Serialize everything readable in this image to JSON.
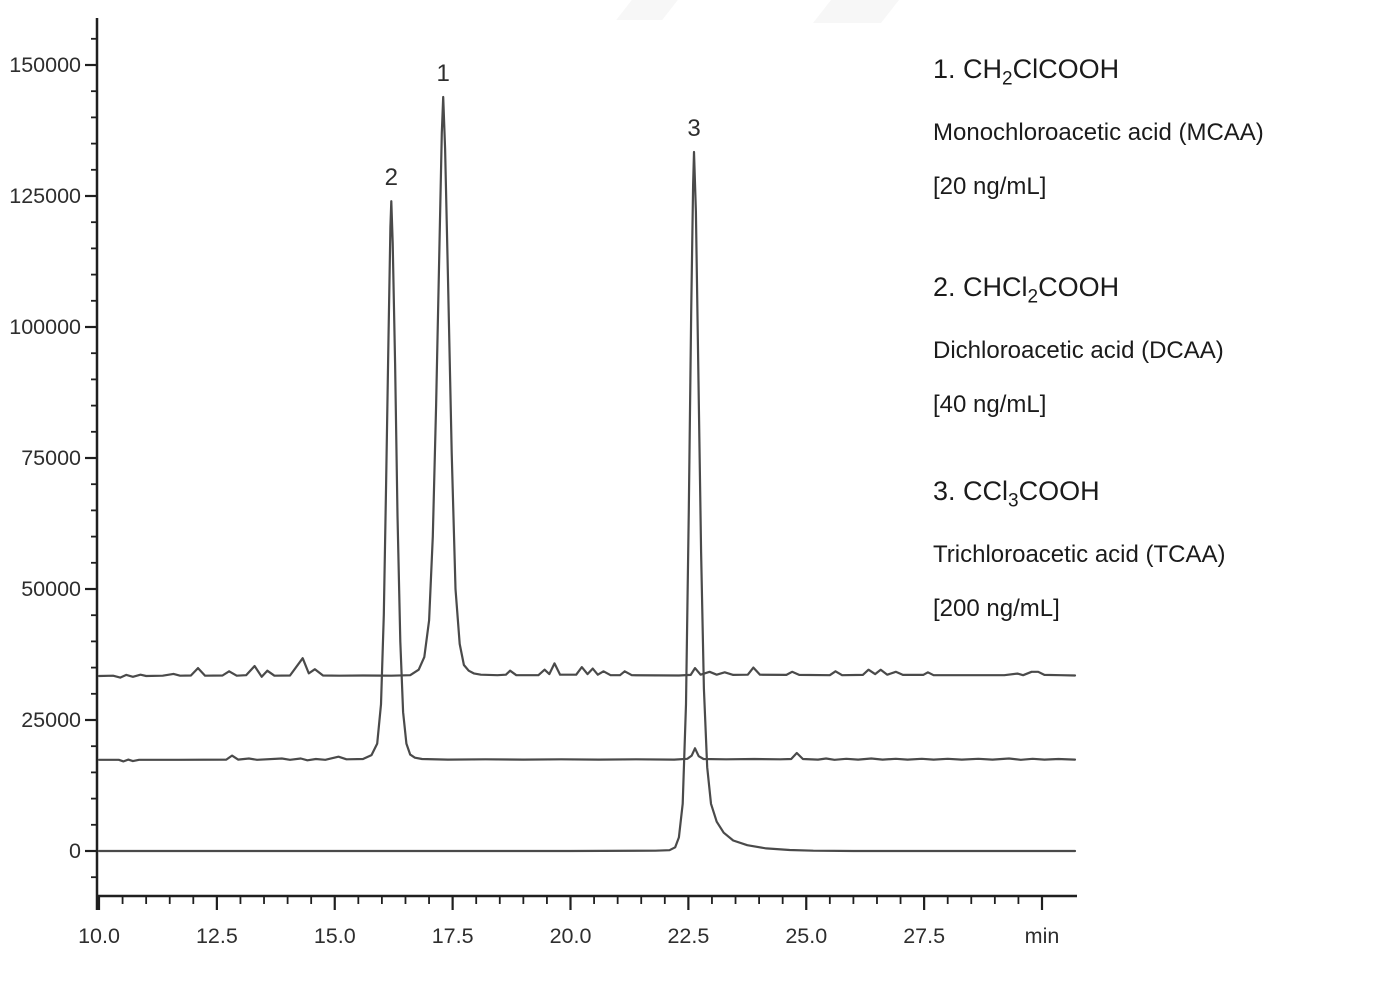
{
  "figure": {
    "background_color": "#ffffff",
    "trace_color": "#4a4a4a",
    "axis_color": "#1f1f1f",
    "tick_label_color": "#2e2e2e",
    "watermark_color": "#f7f7f7"
  },
  "legend": {
    "items": [
      {
        "formula_pre": "1. CH",
        "formula_sub": "2",
        "formula_post": "ClCOOH",
        "name": "Monochloroacetic acid (MCAA)",
        "concentration": "[20 ng/mL]"
      },
      {
        "formula_pre": "2. CHCl",
        "formula_sub": "2",
        "formula_post": "COOH",
        "name": "Dichloroacetic acid (DCAA)",
        "concentration": "[40 ng/mL]"
      },
      {
        "formula_pre": "3. CCl",
        "formula_sub": "3",
        "formula_post": "COOH",
        "name": "Trichloroacetic acid (TCAA)",
        "concentration": "[200 ng/mL]"
      }
    ]
  },
  "chart_data": {
    "type": "line",
    "subtype": "chromatogram",
    "title": "",
    "xlabel": "min",
    "ylabel": "",
    "grid": false,
    "legend_position": "right",
    "xlim": [
      10.0,
      30.7
    ],
    "ylim": [
      0,
      150000
    ],
    "x_minor_step": 0.5,
    "y_minor_step": 5000,
    "x_ticks": {
      "values": [
        10.0,
        12.5,
        15.0,
        17.5,
        20.0,
        22.5,
        25.0,
        27.5,
        30.0
      ],
      "labels": [
        "10.0",
        "12.5",
        "15.0",
        "17.5",
        "20.0",
        "22.5",
        "25.0",
        "27.5",
        "min"
      ]
    },
    "y_ticks": {
      "values": [
        0,
        25000,
        50000,
        75000,
        100000,
        125000,
        150000
      ],
      "labels": [
        "0",
        "25000",
        "50000",
        "75000",
        "100000",
        "125000",
        "150000"
      ]
    },
    "peaks": [
      {
        "label": "1",
        "compound": "MCAA",
        "time_min": 17.3,
        "apex_value": 143900
      },
      {
        "label": "2",
        "compound": "DCAA",
        "time_min": 16.2,
        "apex_value": 124000
      },
      {
        "label": "3",
        "compound": "TCAA",
        "time_min": 22.62,
        "apex_value": 133400
      }
    ],
    "series": [
      {
        "id": "trace-mcaa",
        "name": "MCAA trace (offset baseline 33400)",
        "baseline": 33400,
        "points": [
          [
            10.0,
            33400
          ],
          [
            10.3,
            33450
          ],
          [
            10.45,
            33100
          ],
          [
            10.58,
            33600
          ],
          [
            10.72,
            33250
          ],
          [
            10.88,
            33650
          ],
          [
            11.0,
            33400
          ],
          [
            11.35,
            33450
          ],
          [
            11.58,
            33800
          ],
          [
            11.72,
            33450
          ],
          [
            11.95,
            33500
          ],
          [
            12.1,
            34900
          ],
          [
            12.25,
            33450
          ],
          [
            12.62,
            33500
          ],
          [
            12.76,
            34300
          ],
          [
            12.92,
            33450
          ],
          [
            13.12,
            33550
          ],
          [
            13.3,
            35300
          ],
          [
            13.45,
            33250
          ],
          [
            13.57,
            34400
          ],
          [
            13.72,
            33450
          ],
          [
            14.05,
            33500
          ],
          [
            14.32,
            36800
          ],
          [
            14.45,
            33900
          ],
          [
            14.58,
            34700
          ],
          [
            14.75,
            33500
          ],
          [
            15.1,
            33450
          ],
          [
            15.6,
            33500
          ],
          [
            16.2,
            33450
          ],
          [
            16.6,
            33550
          ],
          [
            16.78,
            34600
          ],
          [
            16.9,
            37000
          ],
          [
            17.0,
            44000
          ],
          [
            17.08,
            60000
          ],
          [
            17.15,
            85000
          ],
          [
            17.22,
            115000
          ],
          [
            17.27,
            137000
          ],
          [
            17.3,
            143900
          ],
          [
            17.34,
            134000
          ],
          [
            17.4,
            110000
          ],
          [
            17.48,
            76000
          ],
          [
            17.56,
            50000
          ],
          [
            17.65,
            39500
          ],
          [
            17.74,
            35500
          ],
          [
            17.84,
            34400
          ],
          [
            17.95,
            33900
          ],
          [
            18.1,
            33650
          ],
          [
            18.45,
            33550
          ],
          [
            18.63,
            33650
          ],
          [
            18.72,
            34400
          ],
          [
            18.85,
            33550
          ],
          [
            19.32,
            33550
          ],
          [
            19.45,
            34600
          ],
          [
            19.55,
            33750
          ],
          [
            19.66,
            35800
          ],
          [
            19.78,
            33650
          ],
          [
            20.12,
            33650
          ],
          [
            20.24,
            35100
          ],
          [
            20.36,
            33750
          ],
          [
            20.47,
            34800
          ],
          [
            20.58,
            33650
          ],
          [
            20.7,
            34300
          ],
          [
            20.85,
            33550
          ],
          [
            21.05,
            33550
          ],
          [
            21.15,
            34300
          ],
          [
            21.3,
            33550
          ],
          [
            22.3,
            33500
          ],
          [
            22.55,
            33600
          ],
          [
            22.64,
            34900
          ],
          [
            22.76,
            33650
          ],
          [
            22.95,
            34200
          ],
          [
            23.1,
            33650
          ],
          [
            23.27,
            34100
          ],
          [
            23.45,
            33600
          ],
          [
            23.76,
            33650
          ],
          [
            23.88,
            35000
          ],
          [
            24.02,
            33650
          ],
          [
            24.58,
            33600
          ],
          [
            24.7,
            34200
          ],
          [
            24.85,
            33600
          ],
          [
            25.5,
            33550
          ],
          [
            25.62,
            34300
          ],
          [
            25.76,
            33550
          ],
          [
            26.2,
            33600
          ],
          [
            26.32,
            34600
          ],
          [
            26.46,
            33750
          ],
          [
            26.58,
            34600
          ],
          [
            26.72,
            33650
          ],
          [
            26.9,
            34200
          ],
          [
            27.05,
            33600
          ],
          [
            27.48,
            33600
          ],
          [
            27.58,
            34100
          ],
          [
            27.7,
            33550
          ],
          [
            28.4,
            33550
          ],
          [
            29.2,
            33550
          ],
          [
            29.48,
            33850
          ],
          [
            29.6,
            33550
          ],
          [
            29.78,
            34200
          ],
          [
            29.92,
            34200
          ],
          [
            30.05,
            33600
          ],
          [
            30.4,
            33550
          ],
          [
            30.7,
            33500
          ]
        ]
      },
      {
        "id": "trace-dcaa",
        "name": "DCAA trace (offset baseline 17400)",
        "baseline": 17400,
        "points": [
          [
            10.0,
            17400
          ],
          [
            10.42,
            17400
          ],
          [
            10.52,
            17100
          ],
          [
            10.62,
            17450
          ],
          [
            10.72,
            17150
          ],
          [
            10.85,
            17400
          ],
          [
            11.7,
            17400
          ],
          [
            12.7,
            17450
          ],
          [
            12.82,
            18200
          ],
          [
            12.95,
            17450
          ],
          [
            13.18,
            17650
          ],
          [
            13.35,
            17400
          ],
          [
            13.88,
            17650
          ],
          [
            14.05,
            17400
          ],
          [
            14.28,
            17650
          ],
          [
            14.42,
            17300
          ],
          [
            14.6,
            17550
          ],
          [
            14.8,
            17400
          ],
          [
            15.08,
            18000
          ],
          [
            15.25,
            17500
          ],
          [
            15.6,
            17550
          ],
          [
            15.78,
            18300
          ],
          [
            15.9,
            20500
          ],
          [
            15.98,
            28000
          ],
          [
            16.04,
            45000
          ],
          [
            16.09,
            70000
          ],
          [
            16.14,
            98000
          ],
          [
            16.18,
            119000
          ],
          [
            16.2,
            124000
          ],
          [
            16.23,
            116000
          ],
          [
            16.28,
            93000
          ],
          [
            16.33,
            64000
          ],
          [
            16.39,
            40000
          ],
          [
            16.45,
            26500
          ],
          [
            16.52,
            20500
          ],
          [
            16.6,
            18400
          ],
          [
            16.7,
            17800
          ],
          [
            16.85,
            17550
          ],
          [
            17.4,
            17450
          ],
          [
            18.2,
            17500
          ],
          [
            19.0,
            17450
          ],
          [
            19.8,
            17500
          ],
          [
            20.6,
            17450
          ],
          [
            21.4,
            17500
          ],
          [
            22.2,
            17450
          ],
          [
            22.48,
            17600
          ],
          [
            22.57,
            18200
          ],
          [
            22.64,
            19600
          ],
          [
            22.72,
            18100
          ],
          [
            22.82,
            17550
          ],
          [
            23.3,
            17500
          ],
          [
            23.9,
            17550
          ],
          [
            24.45,
            17500
          ],
          [
            24.68,
            17550
          ],
          [
            24.8,
            18700
          ],
          [
            24.93,
            17550
          ],
          [
            25.25,
            17450
          ],
          [
            25.42,
            17650
          ],
          [
            25.6,
            17400
          ],
          [
            25.85,
            17600
          ],
          [
            26.1,
            17450
          ],
          [
            26.38,
            17650
          ],
          [
            26.62,
            17450
          ],
          [
            26.9,
            17600
          ],
          [
            27.15,
            17450
          ],
          [
            27.45,
            17600
          ],
          [
            27.7,
            17450
          ],
          [
            28.0,
            17600
          ],
          [
            28.3,
            17450
          ],
          [
            28.65,
            17600
          ],
          [
            28.95,
            17450
          ],
          [
            29.3,
            17650
          ],
          [
            29.55,
            17400
          ],
          [
            29.8,
            17600
          ],
          [
            30.05,
            17450
          ],
          [
            30.35,
            17550
          ],
          [
            30.7,
            17450
          ]
        ]
      },
      {
        "id": "trace-tcaa",
        "name": "TCAA trace (baseline 0)",
        "baseline": 0,
        "points": [
          [
            10.0,
            0
          ],
          [
            20.0,
            0
          ],
          [
            21.8,
            50
          ],
          [
            22.1,
            150
          ],
          [
            22.22,
            700
          ],
          [
            22.3,
            2600
          ],
          [
            22.38,
            9000
          ],
          [
            22.45,
            28000
          ],
          [
            22.51,
            65000
          ],
          [
            22.56,
            103000
          ],
          [
            22.6,
            127000
          ],
          [
            22.62,
            133400
          ],
          [
            22.66,
            122000
          ],
          [
            22.71,
            92000
          ],
          [
            22.77,
            57000
          ],
          [
            22.83,
            31000
          ],
          [
            22.9,
            16000
          ],
          [
            22.98,
            9000
          ],
          [
            23.1,
            5600
          ],
          [
            23.25,
            3500
          ],
          [
            23.45,
            2000
          ],
          [
            23.75,
            1100
          ],
          [
            24.15,
            500
          ],
          [
            24.65,
            200
          ],
          [
            25.15,
            50
          ],
          [
            26.0,
            0
          ],
          [
            30.7,
            0
          ]
        ]
      }
    ]
  }
}
